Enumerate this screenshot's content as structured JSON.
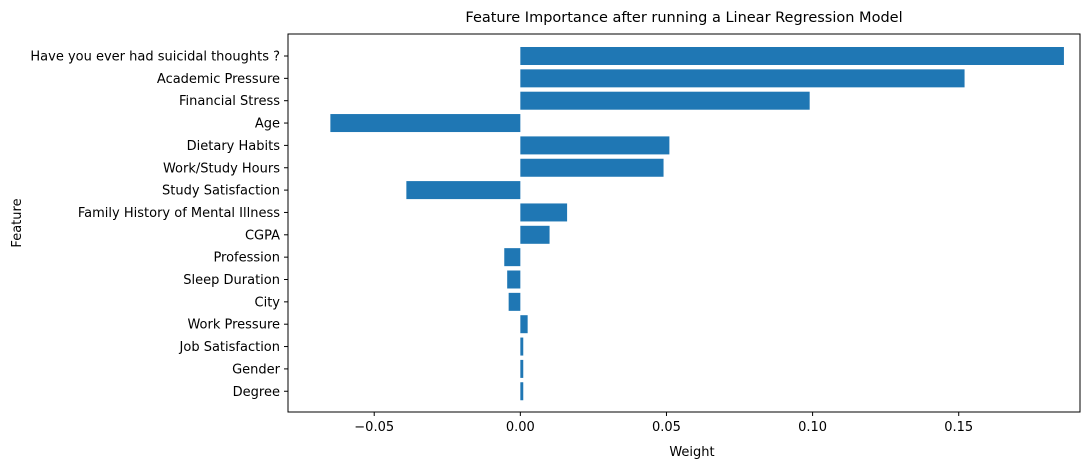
{
  "chart_data": {
    "type": "bar",
    "orientation": "horizontal",
    "title": "Feature Importance after running a Linear Regression Model",
    "xlabel": "Weight",
    "ylabel": "Feature",
    "xlim": [
      -0.0795,
      0.1915
    ],
    "xticks": [
      -0.05,
      0.0,
      0.05,
      0.1,
      0.15
    ],
    "xtick_labels": [
      "−0.05",
      "0.00",
      "0.05",
      "0.10",
      "0.15"
    ],
    "grid": false,
    "bar_color": "#1f77b4",
    "categories": [
      "Have you ever had suicidal thoughts ?",
      "Academic Pressure",
      "Financial Stress",
      "Age",
      "Dietary Habits",
      "Work/Study Hours",
      "Study Satisfaction",
      "Family History of Mental Illness",
      "CGPA",
      "Profession",
      "Sleep Duration",
      "City",
      "Work Pressure",
      "Job Satisfaction",
      "Gender",
      "Degree"
    ],
    "values": [
      0.186,
      0.152,
      0.099,
      -0.065,
      0.051,
      0.049,
      -0.039,
      0.016,
      0.01,
      -0.0055,
      -0.0045,
      -0.004,
      0.0025,
      0.001,
      0.001,
      0.001
    ]
  }
}
